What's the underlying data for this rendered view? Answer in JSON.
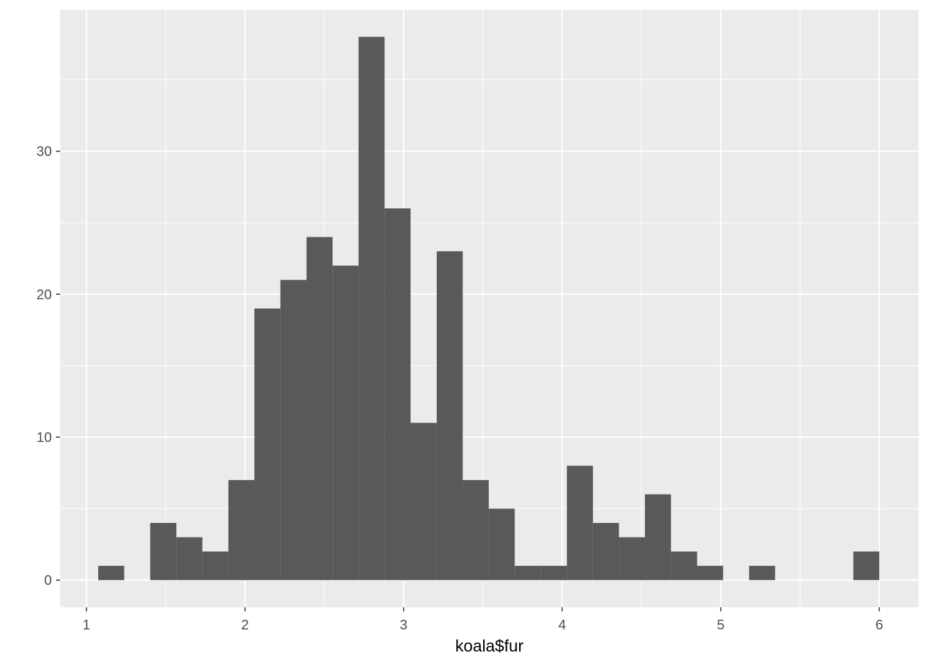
{
  "chart_data": {
    "type": "histogram",
    "x_label": "koala$fur",
    "bins": [
      1.074,
      1.238,
      1.402,
      1.567,
      1.731,
      1.895,
      2.059,
      2.223,
      2.388,
      2.552,
      2.716,
      2.88,
      3.044,
      3.209,
      3.373,
      3.537,
      3.701,
      3.865,
      4.03,
      4.194,
      4.358,
      4.522,
      4.686,
      4.851,
      5.015,
      5.179,
      5.343,
      5.507,
      5.672,
      5.836,
      6.0
    ],
    "counts": [
      1,
      0,
      4,
      3,
      2,
      7,
      19,
      21,
      24,
      22,
      38,
      26,
      11,
      23,
      7,
      5,
      1,
      1,
      8,
      4,
      3,
      6,
      2,
      1,
      0,
      1,
      0,
      0,
      0,
      2
    ],
    "color": "#595959",
    "xlim": [
      0.834,
      6.248
    ],
    "ylim": [
      -1.9,
      39.9
    ],
    "xticks": [
      1,
      2,
      3,
      4,
      5,
      6
    ],
    "yticks": [
      0,
      10,
      20,
      30
    ],
    "x_minor_breaks": [
      1.5,
      2.5,
      3.5,
      4.5,
      5.5
    ],
    "y_minor_breaks": [
      5,
      15,
      25,
      35
    ],
    "grid": true
  }
}
